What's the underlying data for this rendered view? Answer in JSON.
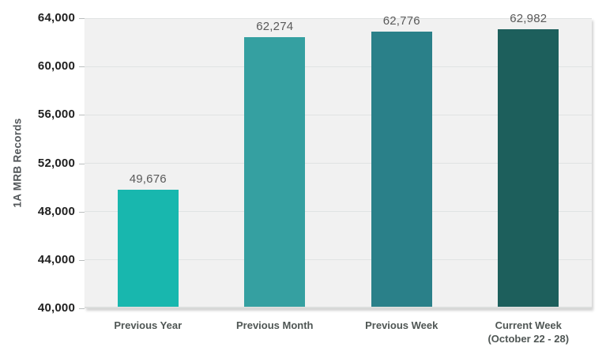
{
  "chart_data": {
    "type": "bar",
    "title": "",
    "y_title": "1A MRB Records",
    "xlabel": "",
    "legend": "none",
    "grid": true,
    "categories": [
      [
        "Previous Year"
      ],
      [
        "Previous Month"
      ],
      [
        "Previous Week"
      ],
      [
        "Current Week",
        "(October 22 - 28)"
      ]
    ],
    "values": [
      49676,
      62274,
      62776,
      62982
    ],
    "value_labels": [
      "49,676",
      "62,274",
      "62,776",
      "62,982"
    ],
    "bar_colors": [
      "#18B7AE",
      "#35A0A1",
      "#2A8089",
      "#1D5F5C"
    ],
    "ylim": [
      40000,
      64000
    ],
    "ytick_step": 4000,
    "ytick_labels": [
      "40,000",
      "44,000",
      "48,000",
      "52,000",
      "56,000",
      "60,000",
      "64,000"
    ],
    "colors": {
      "background": "#FFFFFF",
      "plot_background": "#F1F1F1",
      "gridline": "#E0E3E3",
      "axis_line": "#DCDEDD",
      "tick_mark": "#B9BDBD",
      "ytick_label": "#212121",
      "data_label": "#595959",
      "category_label": "#4F5654",
      "y_title": "#53575A"
    }
  }
}
